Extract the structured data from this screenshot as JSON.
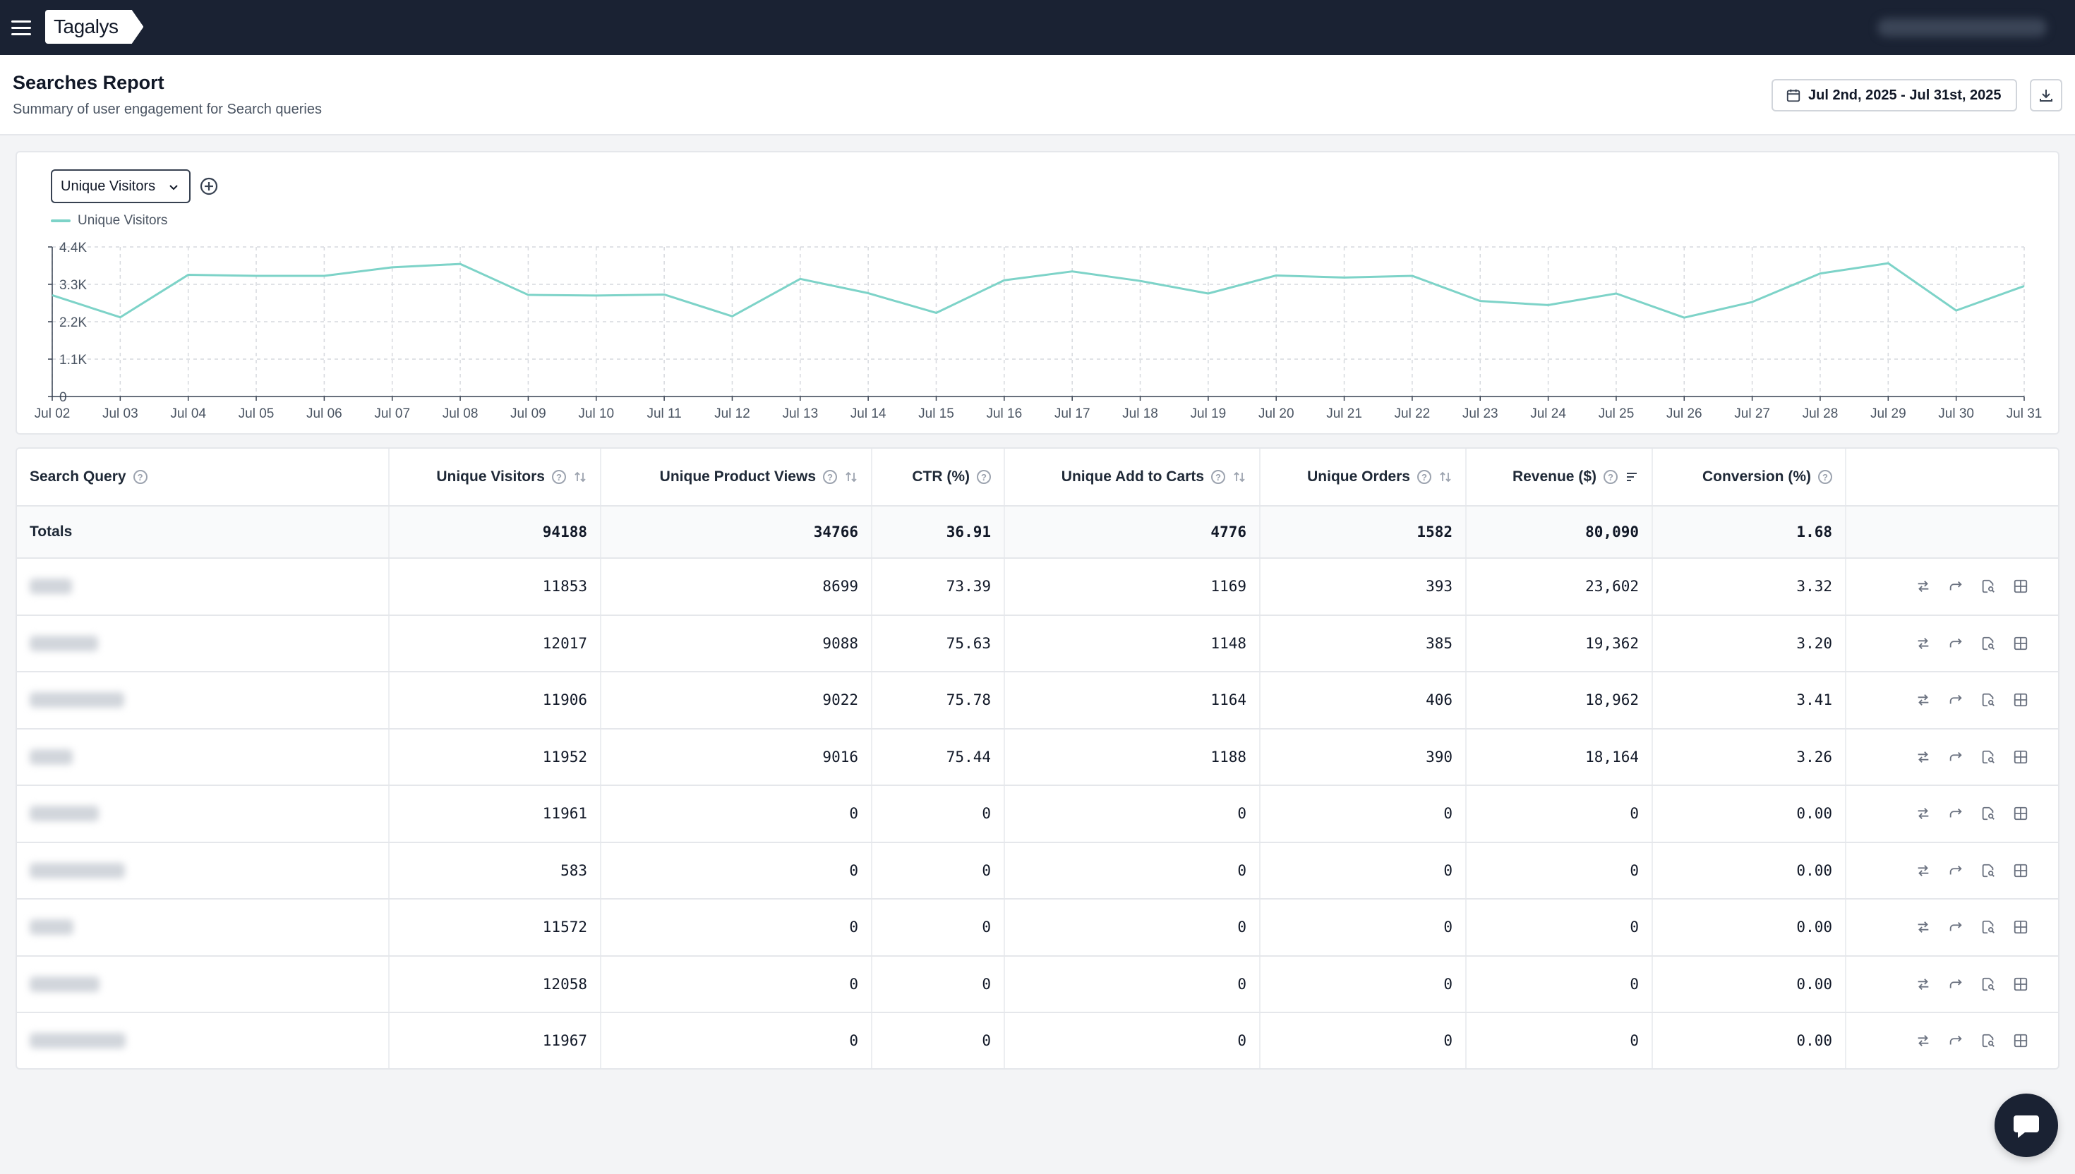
{
  "app": {
    "brand": "Tagalys"
  },
  "header": {
    "title": "Searches Report",
    "subtitle": "Summary of user engagement for Search queries",
    "date_range": "Jul 2nd, 2025 - Jul 31st, 2025"
  },
  "chart": {
    "metric_selected": "Unique Visitors",
    "legend_label": "Unique Visitors"
  },
  "chart_data": {
    "type": "line",
    "series": [
      {
        "name": "Unique Visitors",
        "color": "#7dd3c8",
        "values": [
          2980,
          2330,
          3580,
          3550,
          3550,
          3800,
          3900,
          2990,
          2970,
          3000,
          2360,
          3460,
          3040,
          2460,
          3420,
          3680,
          3400,
          3030,
          3560,
          3500,
          3550,
          2810,
          2690,
          3030,
          2320,
          2780,
          3620,
          3920,
          2530,
          3250
        ]
      }
    ],
    "categories": [
      "Jul 02",
      "Jul 03",
      "Jul 04",
      "Jul 05",
      "Jul 06",
      "Jul 07",
      "Jul 08",
      "Jul 09",
      "Jul 10",
      "Jul 11",
      "Jul 12",
      "Jul 13",
      "Jul 14",
      "Jul 15",
      "Jul 16",
      "Jul 17",
      "Jul 18",
      "Jul 19",
      "Jul 20",
      "Jul 21",
      "Jul 22",
      "Jul 23",
      "Jul 24",
      "Jul 25",
      "Jul 26",
      "Jul 27",
      "Jul 28",
      "Jul 29",
      "Jul 30",
      "Jul 31"
    ],
    "yticks": [
      {
        "value": 0,
        "label": "0"
      },
      {
        "value": 1100,
        "label": "1.1K"
      },
      {
        "value": 2200,
        "label": "2.2K"
      },
      {
        "value": 3300,
        "label": "3.3K"
      },
      {
        "value": 4400,
        "label": "4.4K"
      }
    ],
    "ylim": [
      0,
      4400
    ],
    "grid": true,
    "legend_position": "top-left"
  },
  "table": {
    "columns": [
      {
        "key": "query",
        "label": "Search Query",
        "help": true,
        "sort": ""
      },
      {
        "key": "uv",
        "label": "Unique Visitors",
        "help": true,
        "sort": "none"
      },
      {
        "key": "upv",
        "label": "Unique Product Views",
        "help": true,
        "sort": "none"
      },
      {
        "key": "ctr",
        "label": "CTR (%)",
        "help": true,
        "sort": ""
      },
      {
        "key": "uatc",
        "label": "Unique Add to Carts",
        "help": true,
        "sort": "none"
      },
      {
        "key": "uo",
        "label": "Unique Orders",
        "help": true,
        "sort": "none"
      },
      {
        "key": "rev",
        "label": "Revenue ($)",
        "help": true,
        "sort": "active"
      },
      {
        "key": "conv",
        "label": "Conversion (%)",
        "help": true,
        "sort": ""
      }
    ],
    "totals": {
      "label": "Totals",
      "uv": "94188",
      "upv": "34766",
      "ctr": "36.91",
      "uatc": "4776",
      "uo": "1582",
      "rev": "80,090",
      "conv": "1.68"
    },
    "rows": [
      {
        "uv": "11853",
        "upv": "8699",
        "ctr": "73.39",
        "uatc": "1169",
        "uo": "393",
        "rev": "23,602",
        "conv": "3.32"
      },
      {
        "uv": "12017",
        "upv": "9088",
        "ctr": "75.63",
        "uatc": "1148",
        "uo": "385",
        "rev": "19,362",
        "conv": "3.20"
      },
      {
        "uv": "11906",
        "upv": "9022",
        "ctr": "75.78",
        "uatc": "1164",
        "uo": "406",
        "rev": "18,962",
        "conv": "3.41"
      },
      {
        "uv": "11952",
        "upv": "9016",
        "ctr": "75.44",
        "uatc": "1188",
        "uo": "390",
        "rev": "18,164",
        "conv": "3.26"
      },
      {
        "uv": "11961",
        "upv": "0",
        "ctr": "0",
        "uatc": "0",
        "uo": "0",
        "rev": "0",
        "conv": "0.00"
      },
      {
        "uv": "583",
        "upv": "0",
        "ctr": "0",
        "uatc": "0",
        "uo": "0",
        "rev": "0",
        "conv": "0.00"
      },
      {
        "uv": "11572",
        "upv": "0",
        "ctr": "0",
        "uatc": "0",
        "uo": "0",
        "rev": "0",
        "conv": "0.00"
      },
      {
        "uv": "12058",
        "upv": "0",
        "ctr": "0",
        "uatc": "0",
        "uo": "0",
        "rev": "0",
        "conv": "0.00"
      },
      {
        "uv": "11967",
        "upv": "0",
        "ctr": "0",
        "uatc": "0",
        "uo": "0",
        "rev": "0",
        "conv": "0.00"
      }
    ],
    "row_action_icons": [
      "compare-icon",
      "redirect-icon",
      "search-report-icon",
      "grid-icon"
    ]
  },
  "colors": {
    "topbar": "#1a2233",
    "line": "#7dd3c8",
    "grid": "#d6d9de"
  }
}
